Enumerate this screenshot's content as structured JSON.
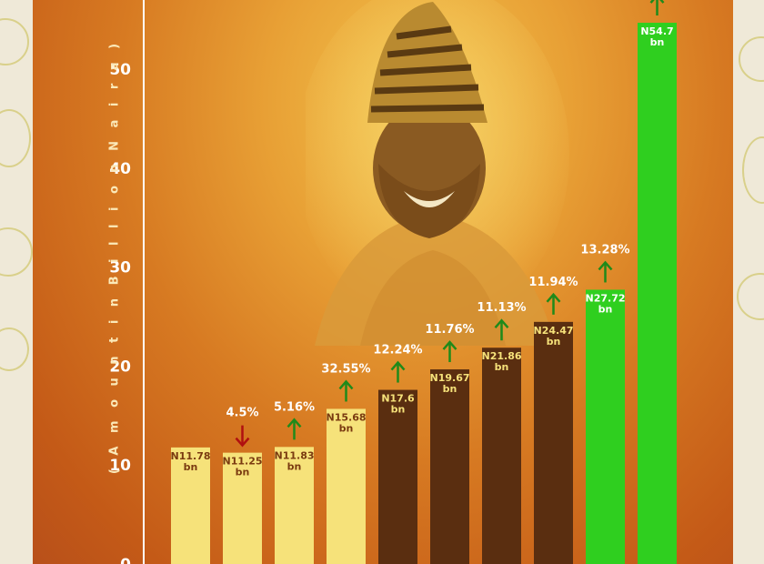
{
  "chart_data": {
    "type": "bar",
    "title": "",
    "xlabel": "",
    "ylabel": "( A m o u n t   i n   B i l l i o n   N a i r a )",
    "ylim": [
      0,
      57
    ],
    "yticks": [
      "0",
      "10",
      "20",
      "30",
      "40",
      "50"
    ],
    "grid": false,
    "categories": [
      "",
      "",
      "",
      "",
      "",
      "",
      "",
      "",
      "",
      ""
    ],
    "values": [
      11.78,
      11.25,
      11.83,
      15.68,
      17.6,
      19.67,
      21.86,
      24.47,
      27.72,
      54.7
    ],
    "value_labels": [
      [
        "N11.78",
        "bn"
      ],
      [
        "N11.25",
        "bn"
      ],
      [
        "N11.83",
        "bn"
      ],
      [
        "N15.68",
        "bn"
      ],
      [
        "N17.6",
        "bn"
      ],
      [
        "N19.67",
        "bn"
      ],
      [
        "N21.86",
        "bn"
      ],
      [
        "N24.47",
        "bn"
      ],
      [
        "N27.72",
        "bn"
      ],
      [
        "N54.7",
        "bn"
      ]
    ],
    "changes": [
      "",
      "4.5%",
      "5.16%",
      "32.55%",
      "12.24%",
      "11.76%",
      "11.13%",
      "11.94%",
      "13.28%",
      ""
    ],
    "directions": [
      "",
      "down",
      "up",
      "up",
      "up",
      "up",
      "up",
      "up",
      "up",
      "up"
    ],
    "bar_colors": [
      "#f6e27a",
      "#f6e27a",
      "#f6e27a",
      "#f6e27a",
      "#5a2e10",
      "#5a2e10",
      "#5a2e10",
      "#5a2e10",
      "#2fcf1f",
      "#2fcf1f"
    ],
    "label_colors": [
      "#7a3a10",
      "#7a3a10",
      "#7a3a10",
      "#7a3a10",
      "#f6e27a",
      "#f6e27a",
      "#f6e27a",
      "#f6e27a",
      "#ffffff",
      "#ffffff"
    ],
    "arrow_colors": {
      "up": "#1f8a1a",
      "down": "#b01010"
    },
    "change_label_color": "#ffffff",
    "axis_color": "#ffffff"
  }
}
